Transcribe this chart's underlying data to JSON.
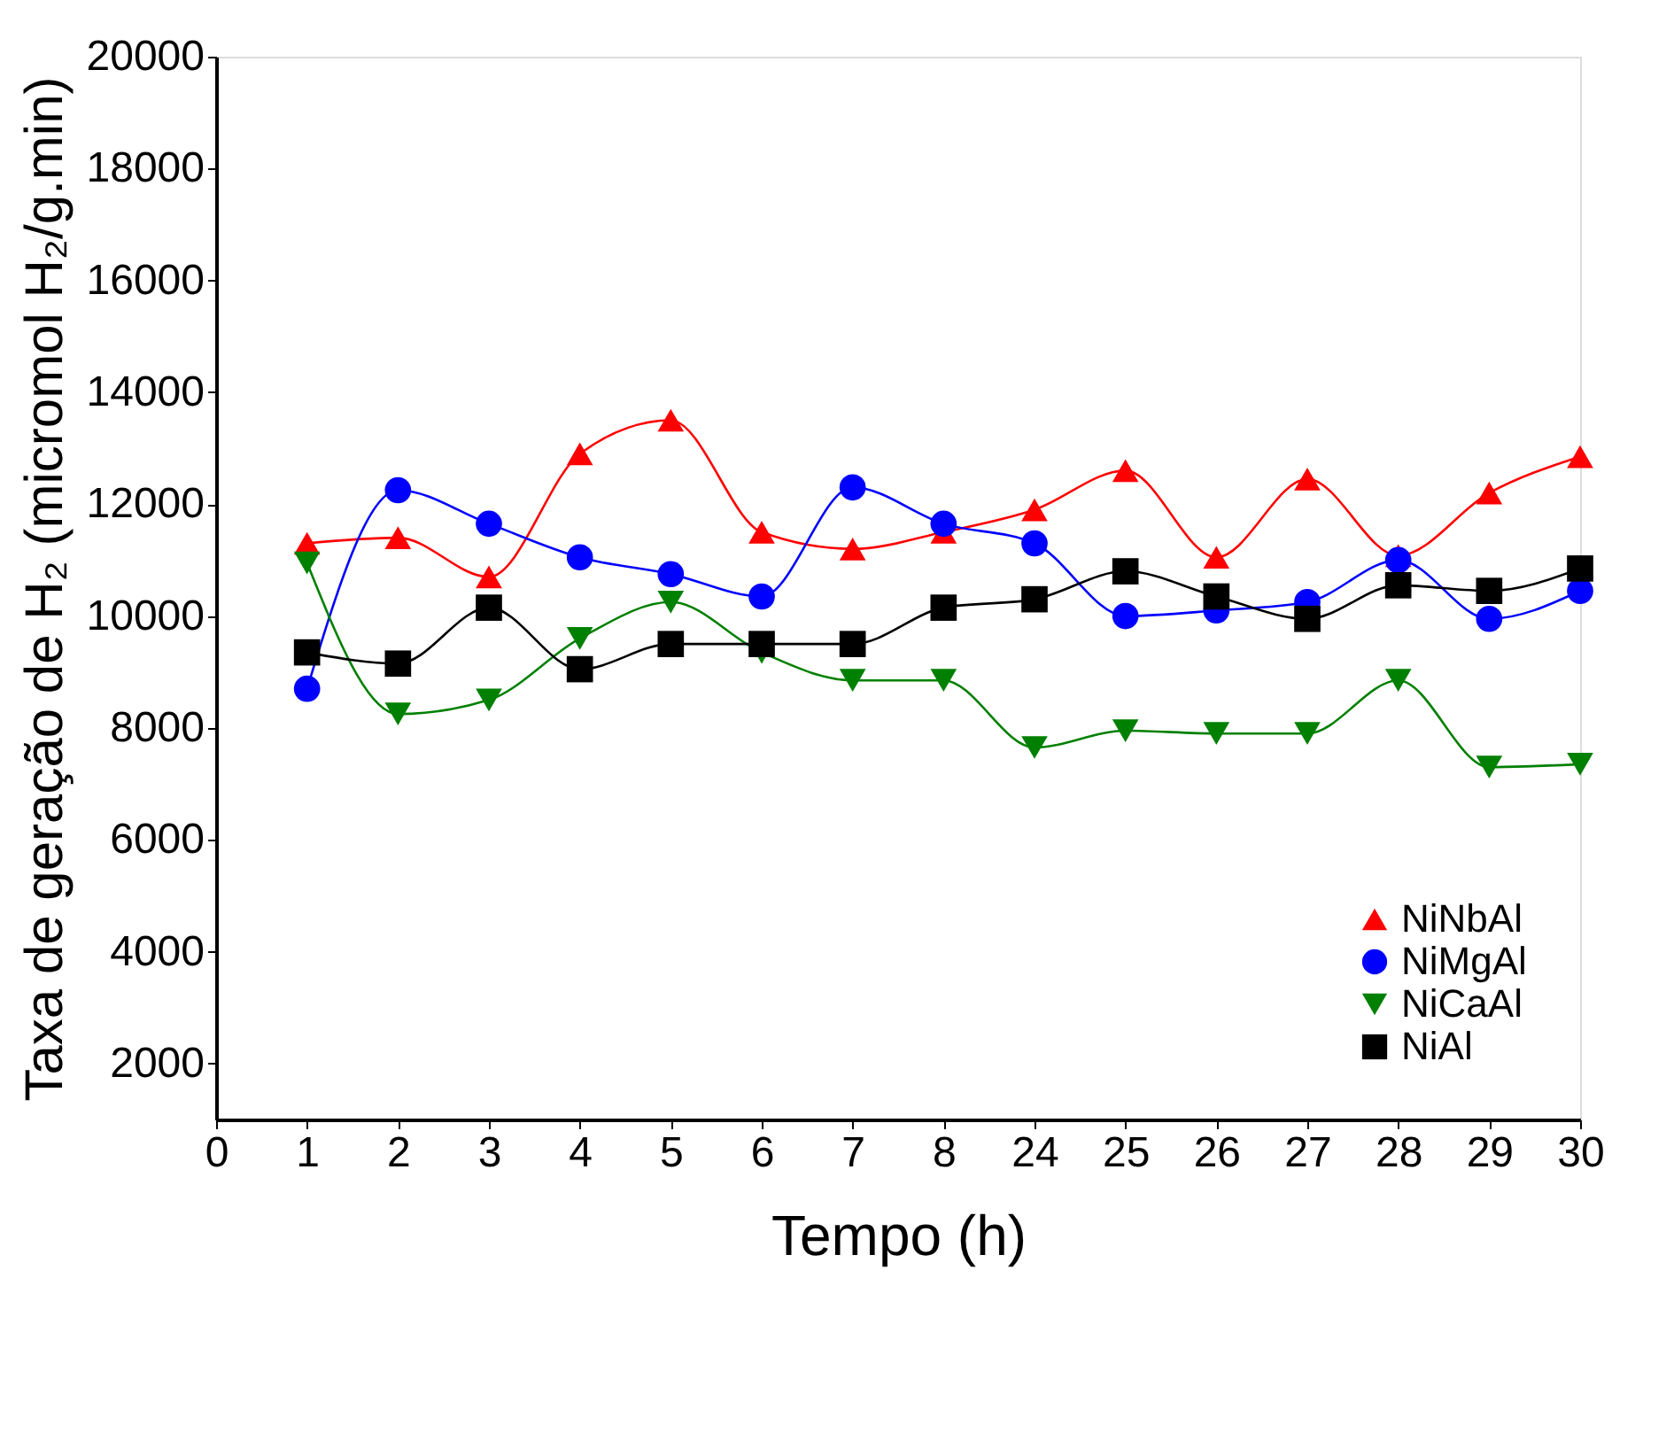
{
  "chart_data": {
    "type": "line",
    "xlabel": "Tempo (h)",
    "ylabel": "Taxa de geração de H₂ (micromol H₂/g.min)",
    "categories": [
      "0",
      "1",
      "2",
      "3",
      "4",
      "5",
      "6",
      "7",
      "8",
      "24",
      "25",
      "26",
      "27",
      "28",
      "29",
      "30"
    ],
    "ylim": [
      1000,
      20000
    ],
    "yticks": [
      2000,
      4000,
      6000,
      8000,
      10000,
      12000,
      14000,
      16000,
      18000,
      20000
    ],
    "grid": false,
    "legend": "bottom right",
    "line_style": "solid",
    "series": [
      {
        "name": "NiNbAl",
        "color": "#ff0000",
        "marker": "triangle",
        "values": [
          null,
          11300,
          11400,
          10700,
          12900,
          13500,
          11500,
          11200,
          11500,
          11900,
          12600,
          11050,
          12450,
          11080,
          12200,
          12850
        ]
      },
      {
        "name": "NiMgAl",
        "color": "#0000ff",
        "marker": "circle",
        "values": [
          null,
          8700,
          12250,
          11650,
          11050,
          10750,
          10350,
          12300,
          11650,
          11300,
          10000,
          10100,
          10250,
          11000,
          9950,
          10450
        ]
      },
      {
        "name": "NiCaAl",
        "color": "#008000",
        "marker": "triangle-down",
        "values": [
          null,
          10950,
          8250,
          8500,
          9600,
          10250,
          9350,
          8850,
          8850,
          7650,
          7950,
          7900,
          7900,
          8850,
          7300,
          7350
        ]
      },
      {
        "name": "NiAl",
        "color": "#000000",
        "marker": "square",
        "values": [
          null,
          9350,
          9150,
          10150,
          9050,
          9500,
          9500,
          9500,
          10150,
          10300,
          10800,
          10350,
          9950,
          10550,
          10450,
          10850
        ]
      }
    ]
  }
}
